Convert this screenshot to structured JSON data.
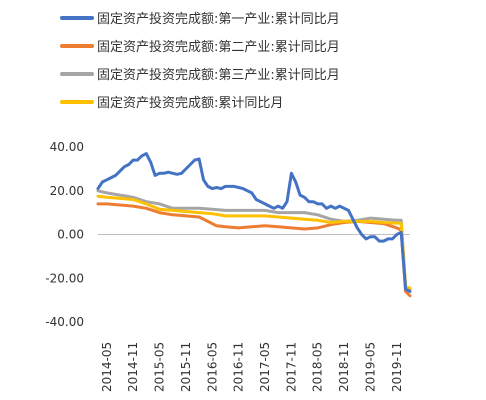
{
  "chart_data": {
    "type": "line",
    "legend_position": "top",
    "grid": false,
    "ylim": [
      -40,
      40
    ],
    "y_ticks": [
      {
        "value": 40,
        "label": "40.00"
      },
      {
        "value": 20,
        "label": "20.00"
      },
      {
        "value": 0,
        "label": "0.00"
      },
      {
        "value": -20,
        "label": "-20.00"
      },
      {
        "value": -40,
        "label": "-40.00"
      }
    ],
    "x_tick_labels": [
      "2014-05",
      "2014-11",
      "2015-05",
      "2015-11",
      "2016-05",
      "2016-11",
      "2017-05",
      "2017-11",
      "2018-05",
      "2018-11",
      "2019-05",
      "2019-11"
    ],
    "x_start": "2014-03",
    "x_end": "2020-02",
    "series": [
      {
        "name": "固定资产投资完成额:第一产业:累计同比月",
        "color": "#4472C4",
        "points": [
          [
            "2014-03",
            21
          ],
          [
            "2014-04",
            24
          ],
          [
            "2014-05",
            25
          ],
          [
            "2014-06",
            26
          ],
          [
            "2014-07",
            27
          ],
          [
            "2014-08",
            29
          ],
          [
            "2014-09",
            31
          ],
          [
            "2014-10",
            32
          ],
          [
            "2014-11",
            34
          ],
          [
            "2014-12",
            34
          ],
          [
            "2015-01",
            36
          ],
          [
            "2015-02",
            37
          ],
          [
            "2015-03",
            33
          ],
          [
            "2015-04",
            27
          ],
          [
            "2015-05",
            28
          ],
          [
            "2015-06",
            28
          ],
          [
            "2015-07",
            28.5
          ],
          [
            "2015-08",
            28
          ],
          [
            "2015-09",
            27.5
          ],
          [
            "2015-10",
            28
          ],
          [
            "2015-11",
            30
          ],
          [
            "2015-12",
            32
          ],
          [
            "2016-01",
            34
          ],
          [
            "2016-02",
            34.5
          ],
          [
            "2016-03",
            25
          ],
          [
            "2016-04",
            22
          ],
          [
            "2016-05",
            21
          ],
          [
            "2016-06",
            21.5
          ],
          [
            "2016-07",
            21
          ],
          [
            "2016-08",
            22
          ],
          [
            "2016-09",
            22
          ],
          [
            "2016-10",
            22
          ],
          [
            "2016-11",
            21.5
          ],
          [
            "2016-12",
            21
          ],
          [
            "2017-01",
            20
          ],
          [
            "2017-02",
            19
          ],
          [
            "2017-03",
            16
          ],
          [
            "2017-04",
            15
          ],
          [
            "2017-05",
            14
          ],
          [
            "2017-06",
            13
          ],
          [
            "2017-07",
            12
          ],
          [
            "2017-08",
            13
          ],
          [
            "2017-09",
            12
          ],
          [
            "2017-10",
            15
          ],
          [
            "2017-11",
            28
          ],
          [
            "2017-12",
            24
          ],
          [
            "2018-01",
            18
          ],
          [
            "2018-02",
            17
          ],
          [
            "2018-03",
            15
          ],
          [
            "2018-04",
            15
          ],
          [
            "2018-05",
            14
          ],
          [
            "2018-06",
            14
          ],
          [
            "2018-07",
            12
          ],
          [
            "2018-08",
            13
          ],
          [
            "2018-09",
            12
          ],
          [
            "2018-10",
            13
          ],
          [
            "2018-11",
            12
          ],
          [
            "2018-12",
            11
          ],
          [
            "2019-01",
            7
          ],
          [
            "2019-02",
            3
          ],
          [
            "2019-03",
            0
          ],
          [
            "2019-04",
            -2
          ],
          [
            "2019-05",
            -1
          ],
          [
            "2019-06",
            -1
          ],
          [
            "2019-07",
            -3
          ],
          [
            "2019-08",
            -3
          ],
          [
            "2019-09",
            -2
          ],
          [
            "2019-10",
            -2
          ],
          [
            "2019-11",
            0
          ],
          [
            "2019-12",
            1
          ],
          [
            "2020-01",
            -25
          ],
          [
            "2020-02",
            -26
          ]
        ]
      },
      {
        "name": "固定资产投资完成额:第二产业:累计同比月",
        "color": "#ED7D31",
        "points": [
          [
            "2014-03",
            14
          ],
          [
            "2014-05",
            14
          ],
          [
            "2014-08",
            13.5
          ],
          [
            "2014-11",
            13
          ],
          [
            "2015-02",
            12
          ],
          [
            "2015-05",
            10
          ],
          [
            "2015-08",
            9
          ],
          [
            "2015-11",
            8.5
          ],
          [
            "2016-02",
            8
          ],
          [
            "2016-04",
            6
          ],
          [
            "2016-06",
            4
          ],
          [
            "2016-08",
            3.5
          ],
          [
            "2016-11",
            3
          ],
          [
            "2017-02",
            3.5
          ],
          [
            "2017-05",
            4
          ],
          [
            "2017-08",
            3.5
          ],
          [
            "2017-11",
            3
          ],
          [
            "2018-02",
            2.5
          ],
          [
            "2018-05",
            3
          ],
          [
            "2018-08",
            4.5
          ],
          [
            "2018-11",
            5.5
          ],
          [
            "2019-02",
            6
          ],
          [
            "2019-05",
            5.5
          ],
          [
            "2019-08",
            5
          ],
          [
            "2019-11",
            3
          ],
          [
            "2019-12",
            2
          ],
          [
            "2020-01",
            -26
          ],
          [
            "2020-02",
            -28
          ]
        ]
      },
      {
        "name": "固定资产投资完成额:第三产业:累计同比月",
        "color": "#A5A5A5",
        "points": [
          [
            "2014-03",
            20
          ],
          [
            "2014-05",
            19
          ],
          [
            "2014-08",
            18
          ],
          [
            "2014-11",
            17
          ],
          [
            "2015-02",
            15
          ],
          [
            "2015-05",
            14
          ],
          [
            "2015-08",
            12
          ],
          [
            "2015-11",
            12
          ],
          [
            "2016-02",
            12
          ],
          [
            "2016-05",
            11.5
          ],
          [
            "2016-08",
            11
          ],
          [
            "2016-11",
            11
          ],
          [
            "2017-02",
            11
          ],
          [
            "2017-05",
            11
          ],
          [
            "2017-08",
            10
          ],
          [
            "2017-11",
            10
          ],
          [
            "2018-02",
            10
          ],
          [
            "2018-05",
            9
          ],
          [
            "2018-08",
            7
          ],
          [
            "2018-11",
            6
          ],
          [
            "2019-02",
            6.5
          ],
          [
            "2019-05",
            7.5
          ],
          [
            "2019-08",
            7
          ],
          [
            "2019-11",
            6.5
          ],
          [
            "2019-12",
            6.5
          ],
          [
            "2020-01",
            -24
          ],
          [
            "2020-02",
            -25
          ]
        ]
      },
      {
        "name": "固定资产投资完成额:累计同比月",
        "color": "#FFC000",
        "points": [
          [
            "2014-03",
            17.5
          ],
          [
            "2014-05",
            17
          ],
          [
            "2014-08",
            16.5
          ],
          [
            "2014-11",
            16
          ],
          [
            "2015-02",
            14
          ],
          [
            "2015-05",
            11.5
          ],
          [
            "2015-08",
            11
          ],
          [
            "2015-11",
            10.5
          ],
          [
            "2016-02",
            10
          ],
          [
            "2016-05",
            9.5
          ],
          [
            "2016-08",
            8.5
          ],
          [
            "2016-11",
            8.5
          ],
          [
            "2017-02",
            8.5
          ],
          [
            "2017-05",
            8.5
          ],
          [
            "2017-08",
            8
          ],
          [
            "2017-11",
            7.5
          ],
          [
            "2018-02",
            7
          ],
          [
            "2018-05",
            6.5
          ],
          [
            "2018-08",
            5.5
          ],
          [
            "2018-11",
            6
          ],
          [
            "2019-02",
            6
          ],
          [
            "2019-05",
            6
          ],
          [
            "2019-08",
            5.5
          ],
          [
            "2019-11",
            5.2
          ],
          [
            "2019-12",
            5.1
          ],
          [
            "2020-01",
            -24
          ],
          [
            "2020-02",
            -24.5
          ]
        ]
      }
    ]
  }
}
